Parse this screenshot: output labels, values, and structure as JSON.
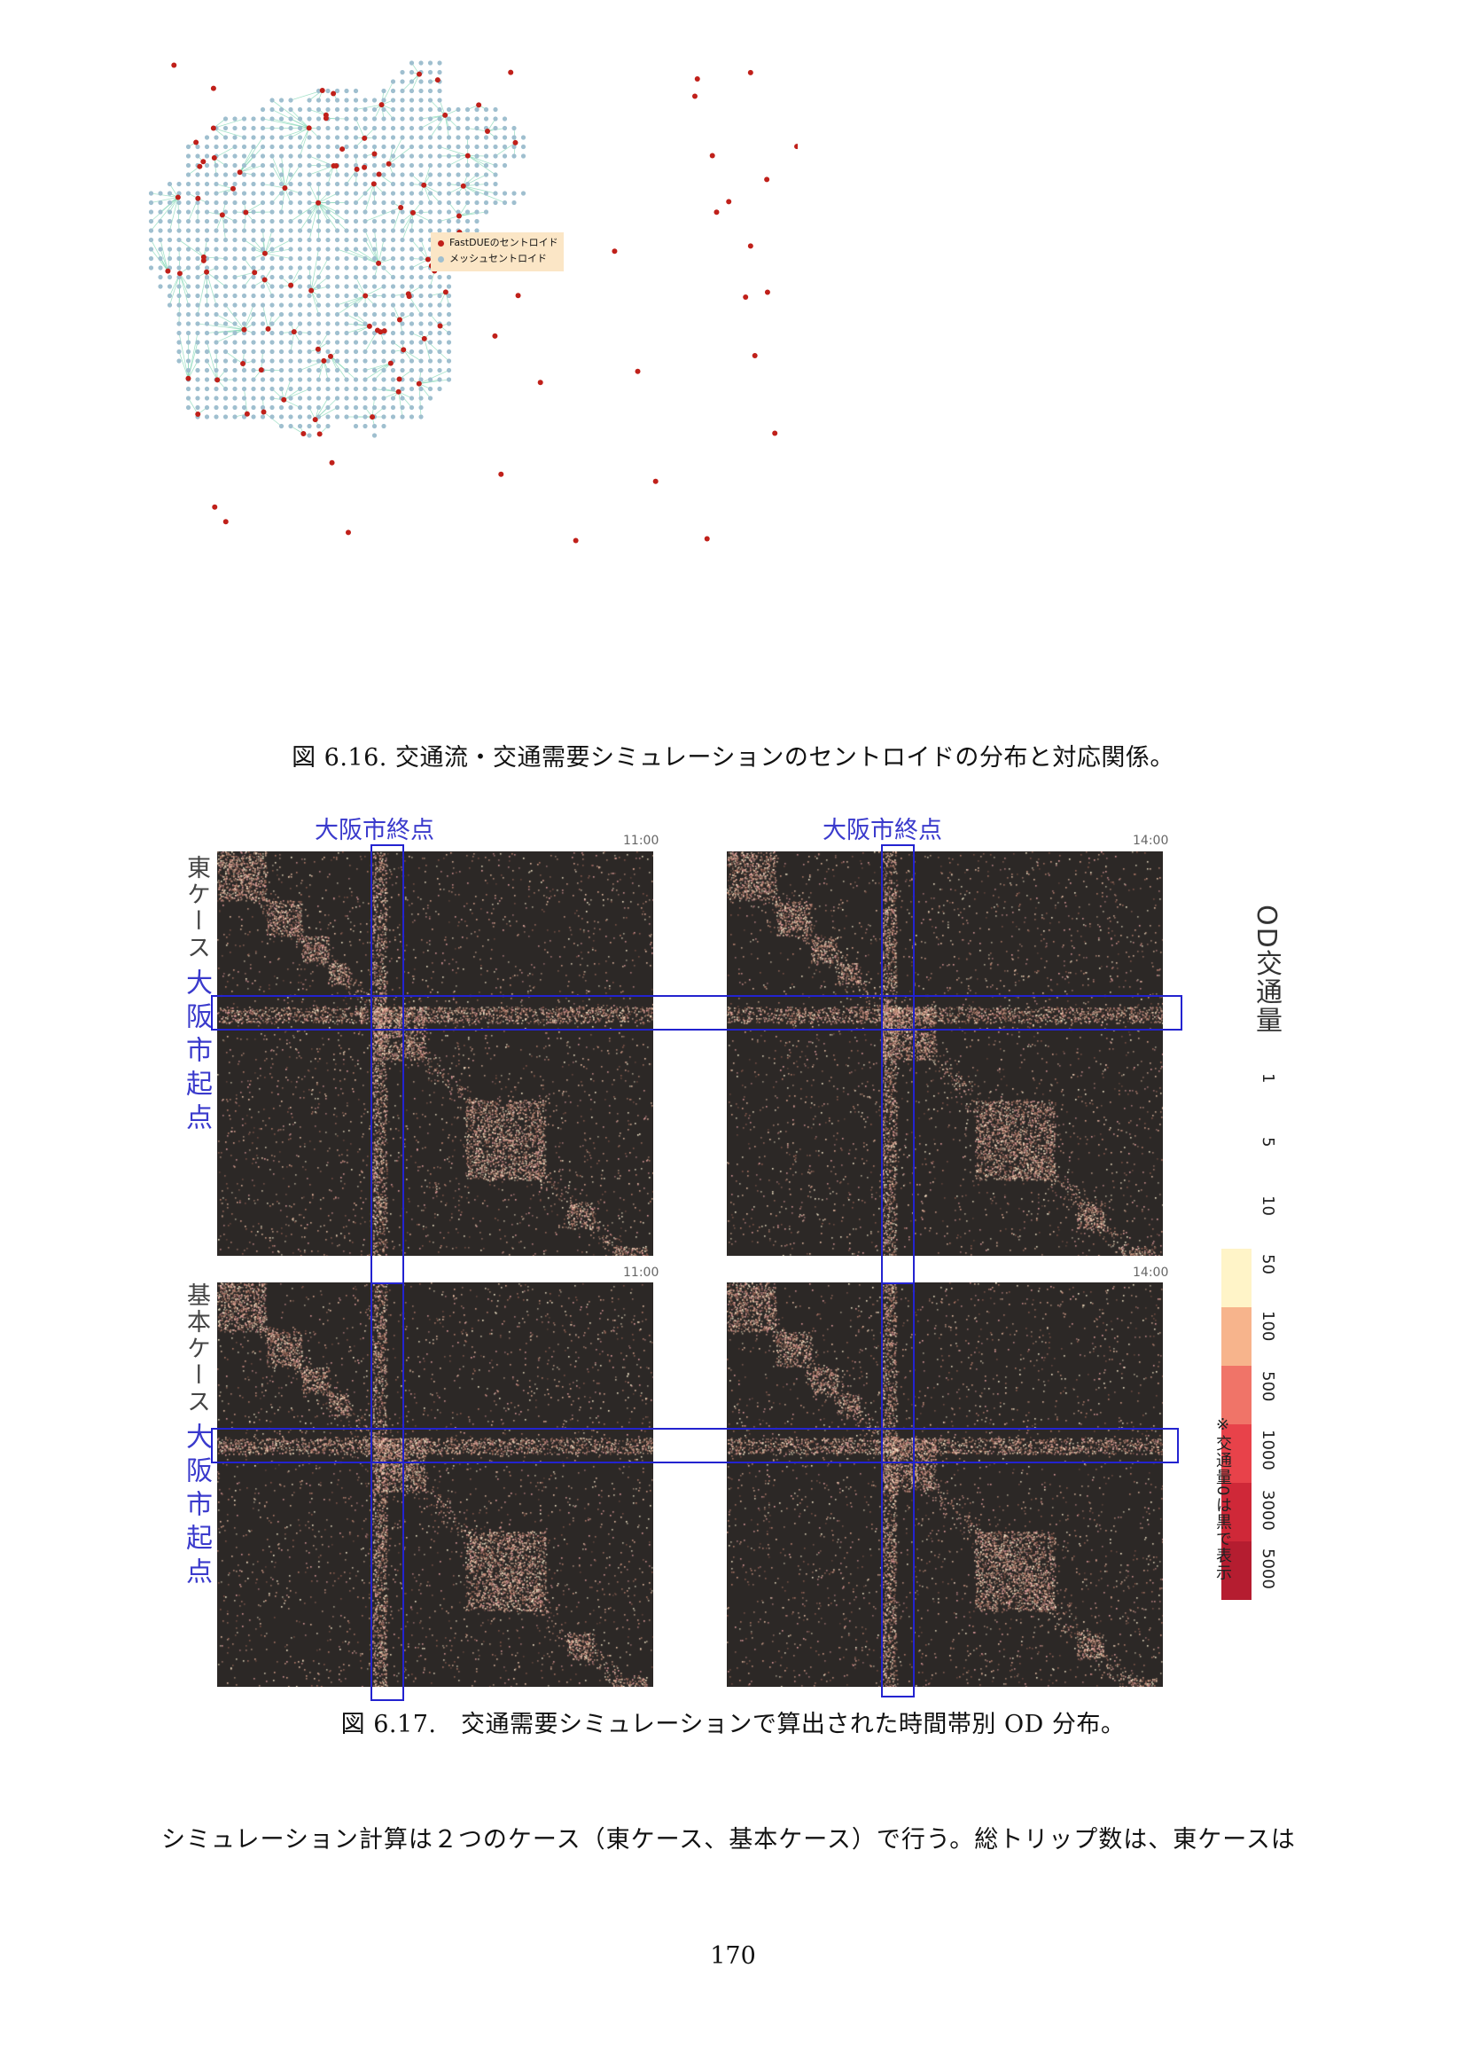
{
  "figure1": {
    "caption": "図 6.16. 交通流・交通需要シミュレーションのセントロイドの分布と対応関係。",
    "legend": [
      {
        "label": "FastDUEのセントロイド",
        "color": "#c0201a"
      },
      {
        "label": "メッシュセントロイド",
        "color": "#9fbfcf"
      }
    ],
    "link_color": "#7fd6b4"
  },
  "figure2": {
    "caption": "図 6.17.　交通需要シミュレーションで算出された時間帯別 OD 分布。",
    "panels": [
      {
        "time": "11:00"
      },
      {
        "time": "14:00"
      },
      {
        "time": "11:00"
      },
      {
        "time": "14:00"
      }
    ],
    "dest_label": "大阪市終点",
    "origin_label": "大阪市起点",
    "row_labels": [
      "東ケース",
      "基本ケース"
    ],
    "colorbar_title": "OD交通量",
    "colorbar_ticks": [
      "1",
      "5",
      "10",
      "50",
      "100",
      "500",
      "1000",
      "3000",
      "5000"
    ],
    "colorbar_colors": [
      "#ffffff",
      "#ffffff",
      "#ffffff",
      "#fff4c8",
      "#f7b48c",
      "#f07468",
      "#e8424a",
      "#cf2838",
      "#b51d30"
    ],
    "colorbar_note": "※交通量0は黒で表示"
  },
  "body_text": "シミュレーション計算は２つのケース（東ケース、基本ケース）で行う。総トリップ数は、東ケースは",
  "page_number": "170"
}
